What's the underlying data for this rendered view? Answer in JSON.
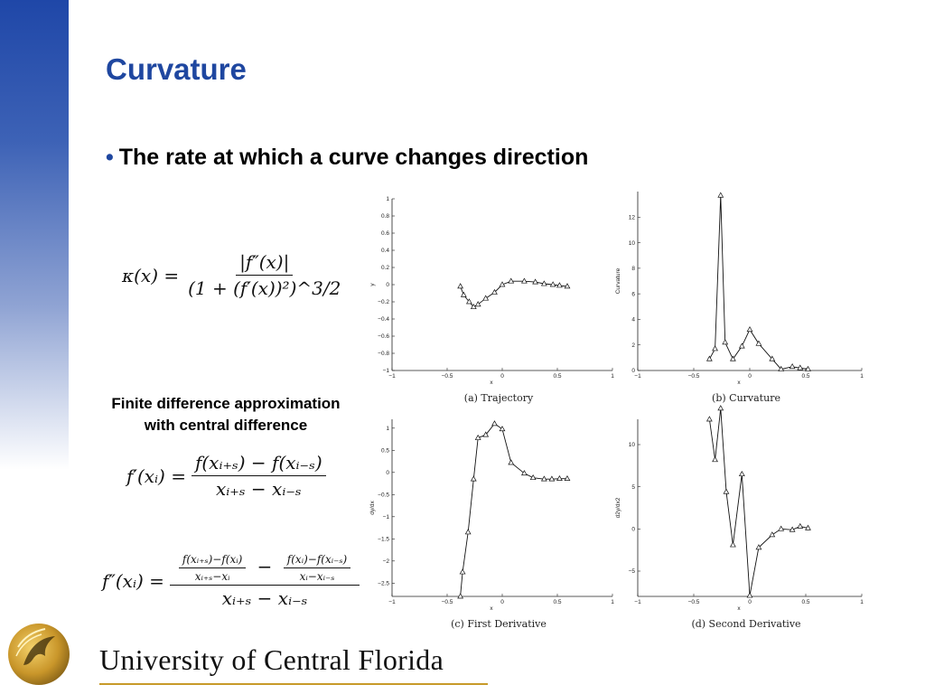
{
  "slide": {
    "title": "Curvature",
    "bullet": "The rate at which a curve changes direction",
    "fd_label_line1": "Finite difference approximation",
    "fd_label_line2": "with central difference",
    "footer": "University of Central Florida"
  },
  "equations": {
    "kappa_lhs": "κ(x) =",
    "kappa_num": "|f″(x)|",
    "kappa_den": "(1 + (f′(x))²)^3/2",
    "f1_lhs": "f′(xᵢ) =",
    "f1_num": "f(xᵢ₊ₛ) − f(xᵢ₋ₛ)",
    "f1_den": "xᵢ₊ₛ − xᵢ₋ₛ",
    "f2_lhs": "f″(xᵢ) =",
    "f2_n1_num": "f(xᵢ₊ₛ)−f(xᵢ)",
    "f2_n1_den": "xᵢ₊ₛ−xᵢ",
    "f2_minus": "−",
    "f2_n2_num": "f(xᵢ)−f(xᵢ₋ₛ)",
    "f2_n2_den": "xᵢ−xᵢ₋ₛ",
    "f2_den": "xᵢ₊ₛ − xᵢ₋ₛ"
  },
  "colors": {
    "title": "#1f47a0",
    "sidebar": "#1f47a8",
    "gold": "#c79a2a"
  },
  "chart_data": [
    {
      "type": "line",
      "title": "(a) Trajectory",
      "xlabel": "x",
      "ylabel": "y",
      "xlim": [
        -1,
        1
      ],
      "ylim": [
        -1,
        1
      ],
      "xticks": [
        "−1",
        "−0.5",
        "0",
        "0.5",
        "1"
      ],
      "yticks": [
        "1",
        "0.8",
        "0.6",
        "0.4",
        "0.2",
        "0",
        "−0.2",
        "−0.4",
        "−0.6",
        "−0.8",
        "−1"
      ],
      "x": [
        -0.38,
        -0.35,
        -0.3,
        -0.26,
        -0.22,
        -0.15,
        -0.07,
        0.0,
        0.08,
        0.2,
        0.3,
        0.38,
        0.46,
        0.52,
        0.59
      ],
      "y": [
        -0.02,
        -0.12,
        -0.2,
        -0.26,
        -0.23,
        -0.16,
        -0.09,
        0.0,
        0.04,
        0.04,
        0.03,
        0.01,
        0.0,
        -0.01,
        -0.02
      ],
      "grid": false
    },
    {
      "type": "line",
      "title": "(b) Curvature",
      "xlabel": "x",
      "ylabel": "Curvature",
      "xlim": [
        -1,
        1
      ],
      "ylim": [
        0,
        14
      ],
      "xticks": [
        "−1",
        "−0.5",
        "0",
        "0.5",
        "1"
      ],
      "yticks": [
        "0",
        "2",
        "4",
        "6",
        "8",
        "10",
        "12"
      ],
      "x": [
        -0.36,
        -0.31,
        -0.26,
        -0.22,
        -0.15,
        -0.07,
        0.0,
        0.08,
        0.2,
        0.28,
        0.38,
        0.45,
        0.52
      ],
      "y": [
        0.9,
        1.7,
        13.7,
        2.2,
        0.9,
        1.9,
        3.2,
        2.1,
        0.9,
        0.1,
        0.3,
        0.2,
        0.1
      ],
      "grid": false
    },
    {
      "type": "line",
      "title": "(c) First Derivative",
      "xlabel": "x",
      "ylabel": "dy/dx",
      "xlim": [
        -1,
        1
      ],
      "ylim": [
        -2.8,
        1.2
      ],
      "xticks": [
        "−1",
        "−0.5",
        "0",
        "0.5",
        "1"
      ],
      "yticks": [
        "1",
        "0.5",
        "0",
        "−0.5",
        "−1",
        "−1.5",
        "−2",
        "−2.5"
      ],
      "x": [
        -0.38,
        -0.36,
        -0.31,
        -0.26,
        -0.22,
        -0.15,
        -0.07,
        0.0,
        0.08,
        0.2,
        0.28,
        0.38,
        0.45,
        0.52,
        0.59
      ],
      "y": [
        -2.8,
        -2.25,
        -1.35,
        -0.15,
        0.78,
        0.85,
        1.1,
        0.98,
        0.22,
        -0.02,
        -0.12,
        -0.15,
        -0.15,
        -0.14,
        -0.14
      ],
      "grid": false
    },
    {
      "type": "line",
      "title": "(d) Second Derivative",
      "xlabel": "x",
      "ylabel": "d2y/dx2",
      "xlim": [
        -1,
        1
      ],
      "ylim": [
        -8,
        13
      ],
      "xticks": [
        "−1",
        "−0.5",
        "0",
        "0.5",
        "1"
      ],
      "yticks": [
        "10",
        "5",
        "0",
        "−5"
      ],
      "x": [
        -0.36,
        -0.31,
        -0.26,
        -0.21,
        -0.15,
        -0.07,
        0.0,
        0.08,
        0.2,
        0.28,
        0.38,
        0.45,
        0.52
      ],
      "y": [
        13.0,
        8.2,
        14.3,
        4.4,
        -1.9,
        6.5,
        -7.9,
        -2.2,
        -0.7,
        0.0,
        -0.1,
        0.3,
        0.1
      ],
      "grid": false
    }
  ]
}
